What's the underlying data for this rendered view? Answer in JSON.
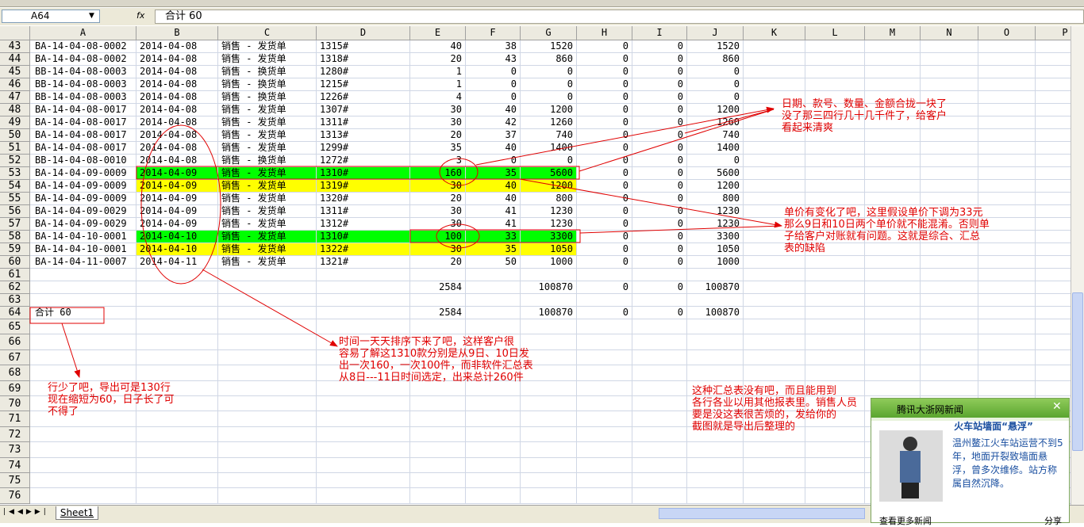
{
  "formula_bar": {
    "name_box": "A64",
    "fx": "fx",
    "formula": "合计 60"
  },
  "columns": [
    "A",
    "B",
    "C",
    "D",
    "E",
    "F",
    "G",
    "H",
    "I",
    "J",
    "K",
    "L",
    "M",
    "N",
    "O",
    "P"
  ],
  "rows": [
    {
      "number": "43",
      "cells": [
        "BA-14-04-08-0002",
        "2014-04-08",
        "销售 - 发货单",
        "1315#",
        40,
        38,
        1520,
        0,
        0,
        1520
      ]
    },
    {
      "number": "44",
      "cells": [
        "BA-14-04-08-0002",
        "2014-04-08",
        "销售 - 发货单",
        "1318#",
        20,
        43,
        860,
        0,
        0,
        860
      ]
    },
    {
      "number": "45",
      "cells": [
        "BB-14-04-08-0003",
        "2014-04-08",
        "销售 - 换货单",
        "1280#",
        1,
        0,
        0,
        0,
        0,
        0
      ]
    },
    {
      "number": "46",
      "cells": [
        "BB-14-04-08-0003",
        "2014-04-08",
        "销售 - 换货单",
        "1215#",
        1,
        0,
        0,
        0,
        0,
        0
      ]
    },
    {
      "number": "47",
      "cells": [
        "BB-14-04-08-0003",
        "2014-04-08",
        "销售 - 换货单",
        "1226#",
        4,
        0,
        0,
        0,
        0,
        0
      ]
    },
    {
      "number": "48",
      "cells": [
        "BA-14-04-08-0017",
        "2014-04-08",
        "销售 - 发货单",
        "1307#",
        30,
        40,
        1200,
        0,
        0,
        1200
      ]
    },
    {
      "number": "49",
      "cells": [
        "BA-14-04-08-0017",
        "2014-04-08",
        "销售 - 发货单",
        "1311#",
        30,
        42,
        1260,
        0,
        0,
        1260
      ]
    },
    {
      "number": "50",
      "cells": [
        "BA-14-04-08-0017",
        "2014-04-08",
        "销售 - 发货单",
        "1313#",
        20,
        37,
        740,
        0,
        0,
        740
      ]
    },
    {
      "number": "51",
      "cells": [
        "BA-14-04-08-0017",
        "2014-04-08",
        "销售 - 发货单",
        "1299#",
        35,
        40,
        1400,
        0,
        0,
        1400
      ]
    },
    {
      "number": "52",
      "cells": [
        "BB-14-04-08-0010",
        "2014-04-08",
        "销售 - 换货单",
        "1272#",
        3,
        0,
        0,
        0,
        0,
        0
      ]
    },
    {
      "number": "53",
      "cells": [
        "BA-14-04-09-0009",
        "2014-04-09",
        "销售 - 发货单",
        "1310#",
        160,
        35,
        5600,
        0,
        0,
        5600
      ]
    },
    {
      "number": "54",
      "cells": [
        "BA-14-04-09-0009",
        "2014-04-09",
        "销售 - 发货单",
        "1319#",
        30,
        40,
        1200,
        0,
        0,
        1200
      ]
    },
    {
      "number": "55",
      "cells": [
        "BA-14-04-09-0009",
        "2014-04-09",
        "销售 - 发货单",
        "1320#",
        20,
        40,
        800,
        0,
        0,
        800
      ]
    },
    {
      "number": "56",
      "cells": [
        "BA-14-04-09-0029",
        "2014-04-09",
        "销售 - 发货单",
        "1311#",
        30,
        41,
        1230,
        0,
        0,
        1230
      ]
    },
    {
      "number": "57",
      "cells": [
        "BA-14-04-09-0029",
        "2014-04-09",
        "销售 - 发货单",
        "1312#",
        30,
        41,
        1230,
        0,
        0,
        1230
      ]
    },
    {
      "number": "58",
      "cells": [
        "BA-14-04-10-0001",
        "2014-04-10",
        "销售 - 发货单",
        "1310#",
        100,
        33,
        3300,
        0,
        0,
        3300
      ]
    },
    {
      "number": "59",
      "cells": [
        "BA-14-04-10-0001",
        "2014-04-10",
        "销售 - 发货单",
        "1322#",
        30,
        35,
        1050,
        0,
        0,
        1050
      ]
    },
    {
      "number": "60",
      "cells": [
        "BA-14-04-11-0007",
        "2014-04-11",
        "销售 - 发货单",
        "1321#",
        20,
        50,
        1000,
        0,
        0,
        1000
      ]
    },
    {
      "number": "61"
    },
    {
      "number": "62",
      "cells": [
        null,
        null,
        null,
        null,
        2584,
        null,
        100870,
        0,
        0,
        100870
      ]
    },
    {
      "number": "63"
    },
    {
      "number": "64",
      "cells": [
        "合计 60",
        null,
        null,
        null,
        2584,
        null,
        100870,
        0,
        0,
        100870
      ]
    },
    {
      "number": "65"
    },
    {
      "number": "66"
    },
    {
      "number": "67"
    },
    {
      "number": "68"
    },
    {
      "number": "69"
    },
    {
      "number": "70"
    },
    {
      "number": "71"
    },
    {
      "number": "72"
    },
    {
      "number": "73"
    },
    {
      "number": "74"
    },
    {
      "number": "75"
    },
    {
      "number": "76"
    }
  ],
  "annotations": [
    "日期、款号、数量、金额合拢一块了\n没了那三四行几十几千件了，给客户\n看起来清爽",
    "单价有变化了吧，这里假设单价下调为33元\n那么9日和10日两个单价就不能混淆。否则单\n子给客户对账就有问题。这就是综合、汇总\n表的缺陷",
    "时间一天天排序下来了吧，这样客户很\n容易了解这1310款分别是从9日、10日发\n出一次160，一次100件，而非软件汇总表\n从8日---11日时间选定，出来总计260件",
    "行少了吧，导出可是130行\n现在缩短为60，日子长了可\n不得了",
    "这种汇总表没有吧，而且能用到\n各行各业以用其他报表里。销售人员\n要是没这表很苦烦的，发给你的\n截图就是导出后整理的"
  ],
  "sheet_tab": "Sheet1",
  "popup": {
    "title": "腾讯大浙网新闻",
    "headline": "火车站墙面“悬浮”",
    "body": "温州鳌江火车站运营不到5年，地面开裂致墙面悬浮，曾多次维修。站方称属自然沉降。",
    "more": "查看更多新闻",
    "share": "分享"
  }
}
